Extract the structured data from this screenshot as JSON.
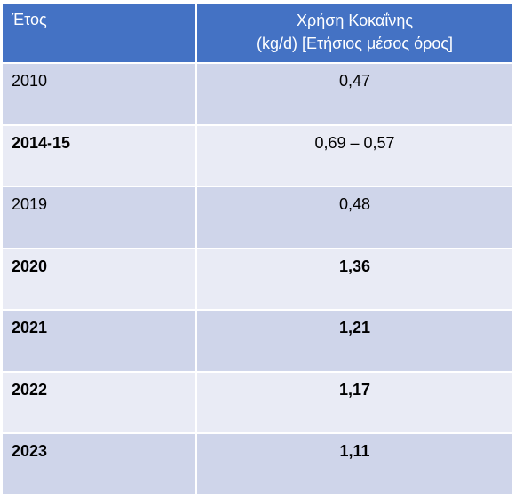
{
  "table": {
    "header": [
      "Έτος",
      [
        "Χρήση Κοκαΐνης",
        "(kg/d) [Ετήσιος μέσος όρος]"
      ]
    ],
    "rows": [
      [
        "2010",
        "0,47"
      ],
      [
        "2014-15",
        "0,69 – 0,57"
      ],
      [
        "2019",
        "0,48"
      ],
      [
        "2020",
        "1,36"
      ],
      [
        "2021",
        "1,21"
      ],
      [
        "2022",
        "1,17"
      ],
      [
        "2023",
        "1,11"
      ]
    ]
  }
}
